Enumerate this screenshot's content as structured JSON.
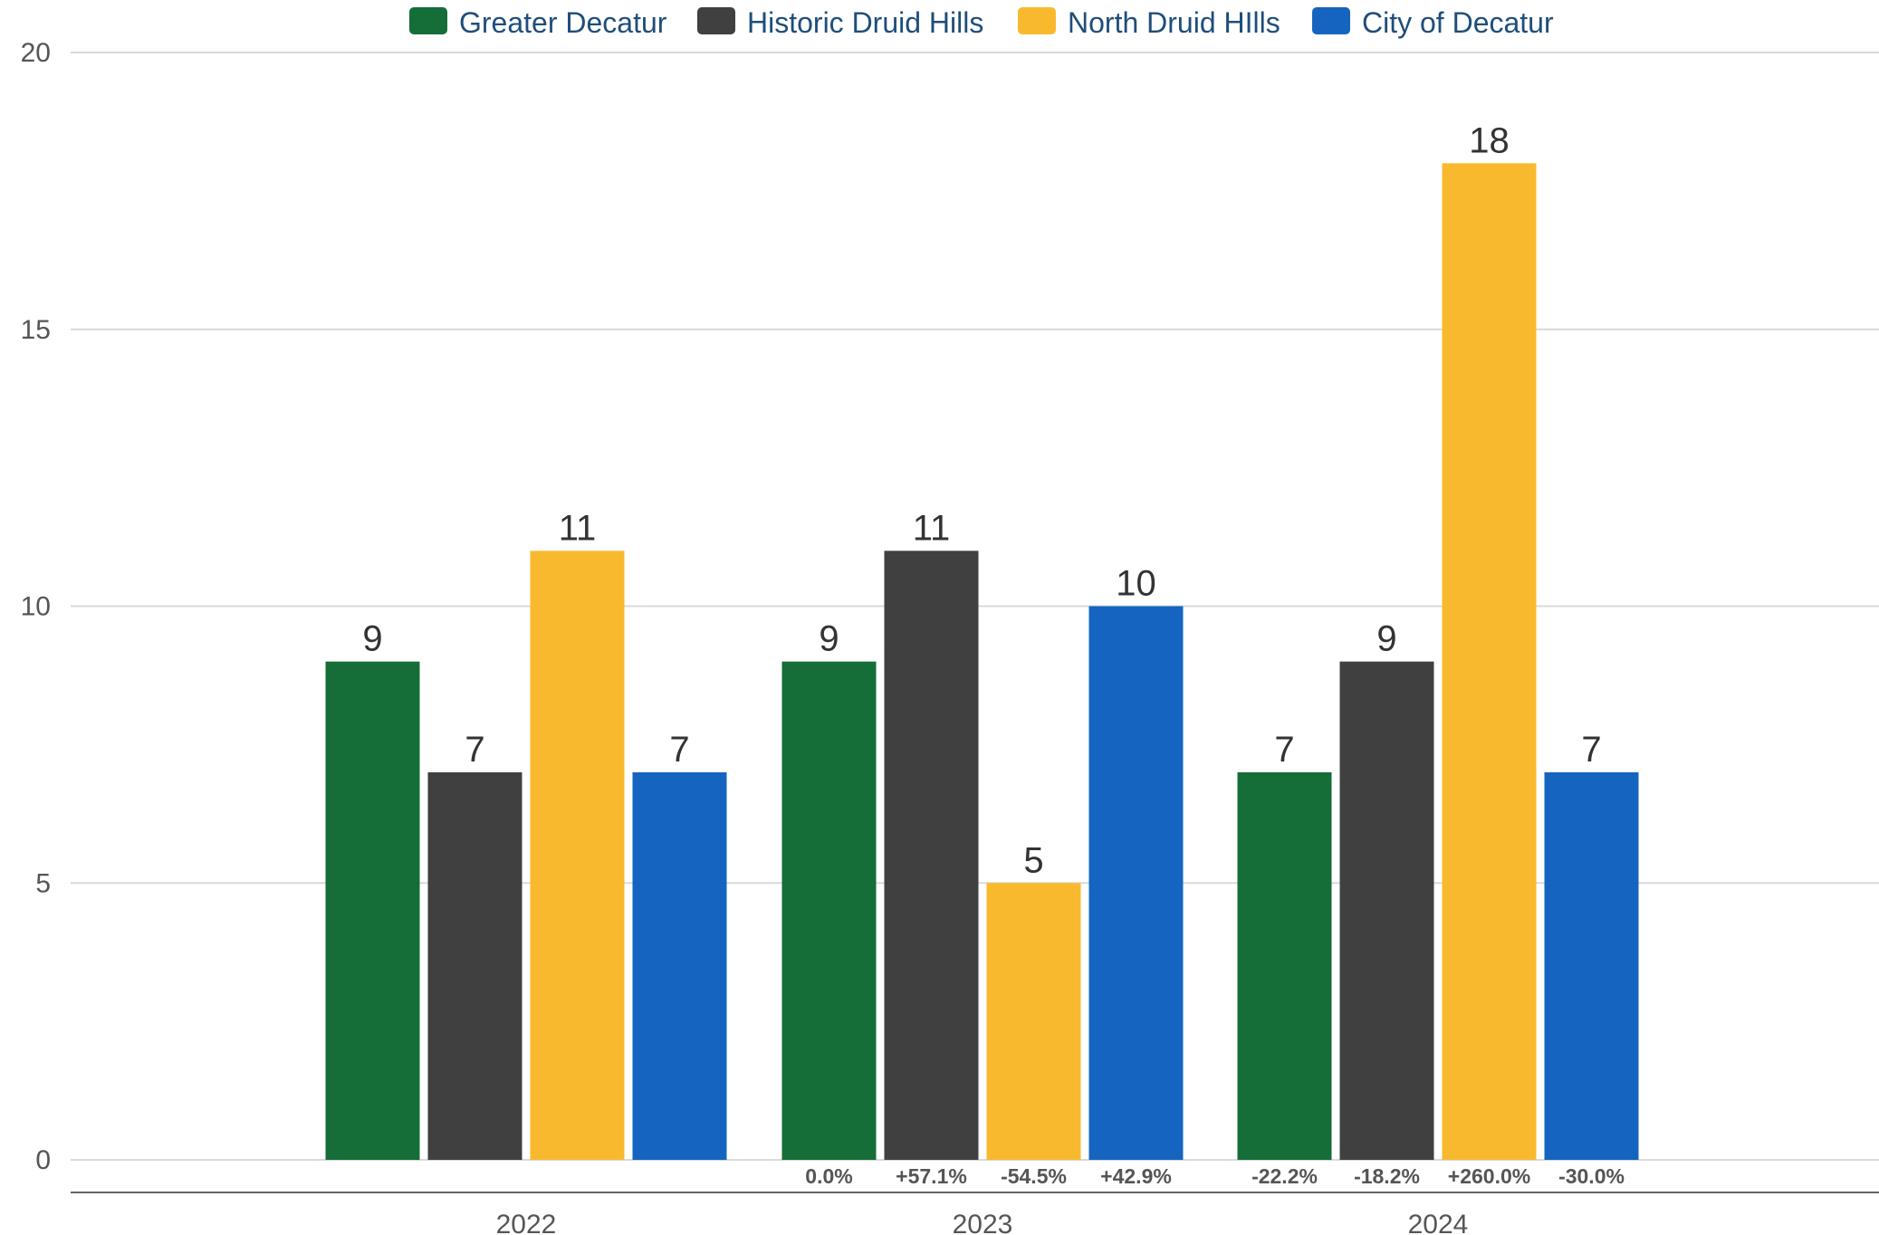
{
  "chart_data": {
    "type": "bar",
    "categories": [
      "2022",
      "2023",
      "2024"
    ],
    "series": [
      {
        "name": "Greater Decatur",
        "color": "#156d38",
        "values": [
          9,
          9,
          7
        ],
        "changes": [
          "",
          "0.0%",
          "-22.2%"
        ]
      },
      {
        "name": "Historic Druid Hills",
        "color": "#404040",
        "values": [
          7,
          11,
          9
        ],
        "changes": [
          "",
          "+57.1%",
          "-18.2%"
        ]
      },
      {
        "name": "North Druid HIlls",
        "color": "#f9b92f",
        "values": [
          11,
          5,
          18
        ],
        "changes": [
          "",
          "-54.5%",
          "+260.0%"
        ]
      },
      {
        "name": "City of Decatur",
        "color": "#1565c0",
        "values": [
          7,
          10,
          7
        ],
        "changes": [
          "",
          "+42.9%",
          "-30.0%"
        ]
      }
    ],
    "ylim": [
      0,
      20
    ],
    "yticks": [
      0,
      5,
      10,
      15,
      20
    ],
    "grid": true,
    "legend_position": "top-center"
  }
}
